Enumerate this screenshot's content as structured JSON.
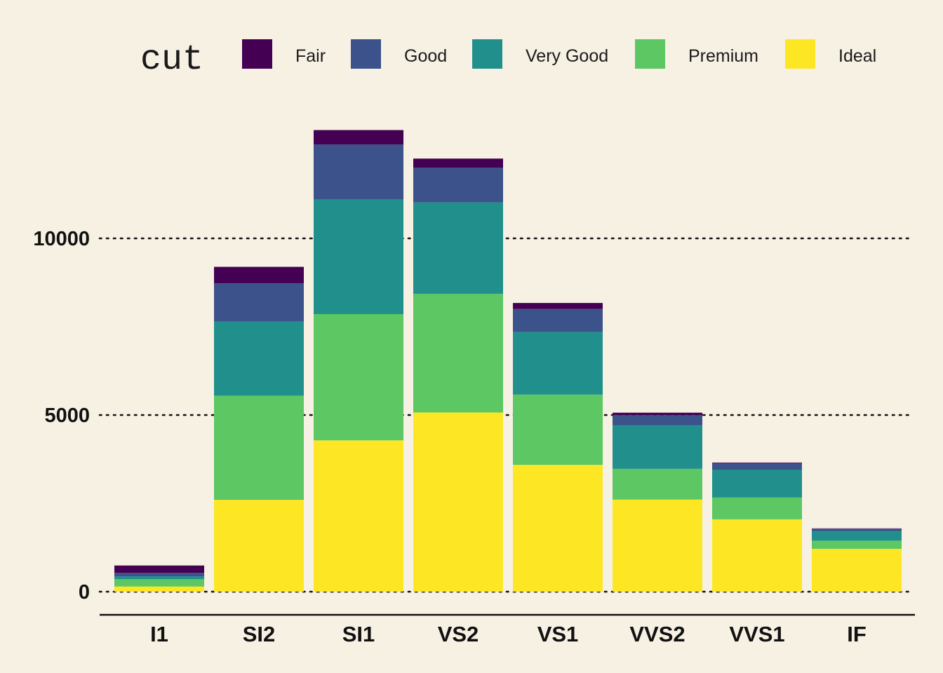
{
  "chart_data": {
    "type": "bar",
    "stacked": true,
    "categories": [
      "I1",
      "SI2",
      "SI1",
      "VS2",
      "VS1",
      "VVS2",
      "VVS1",
      "IF"
    ],
    "series": [
      {
        "name": "Fair",
        "color": "#440154",
        "values": [
          210,
          466,
          408,
          261,
          170,
          69,
          17,
          9
        ]
      },
      {
        "name": "Good",
        "color": "#3b528b",
        "values": [
          96,
          1081,
          1560,
          978,
          648,
          286,
          186,
          71
        ]
      },
      {
        "name": "Very Good",
        "color": "#21908c",
        "values": [
          84,
          2100,
          3240,
          2591,
          1775,
          1235,
          789,
          268
        ]
      },
      {
        "name": "Premium",
        "color": "#5dc863",
        "values": [
          205,
          2949,
          3575,
          3357,
          1989,
          870,
          616,
          230
        ]
      },
      {
        "name": "Ideal",
        "color": "#fde725",
        "values": [
          146,
          2598,
          4282,
          5071,
          3589,
          2606,
          2047,
          1212
        ]
      }
    ],
    "legend": {
      "title": "cut",
      "position": "top"
    },
    "xlabel": "",
    "ylabel": "",
    "ylim": [
      0,
      13000
    ],
    "yticks": [
      0,
      5000,
      10000
    ],
    "grid": "horizontal-dotted",
    "background": "#f7f1e4"
  }
}
